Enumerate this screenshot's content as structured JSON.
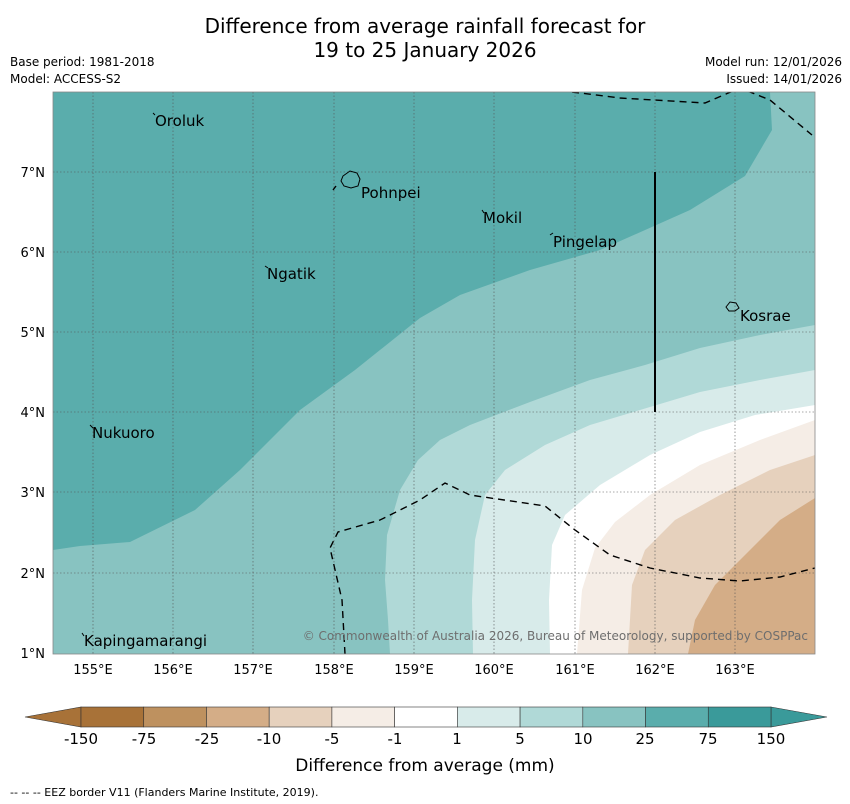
{
  "header": {
    "title_line1": "Difference from average rainfall forecast for",
    "title_line2": "19 to 25 January 2026",
    "base_period": "Base period: 1981-2018",
    "model": "Model: ACCESS-S2",
    "model_run": "Model run: 12/01/2026",
    "issued": "Issued: 14/01/2026"
  },
  "map": {
    "lat_labels": [
      "1°N",
      "2°N",
      "3°N",
      "4°N",
      "5°N",
      "6°N",
      "7°N"
    ],
    "lon_labels": [
      "155°E",
      "156°E",
      "157°E",
      "158°E",
      "159°E",
      "160°E",
      "161°E",
      "162°E",
      "163°E"
    ],
    "places": [
      "Oroluk",
      "Pohnpei",
      "Mokil",
      "Pingelap",
      "Ngatik",
      "Kosrae",
      "Nukuoro",
      "Kapingamarangi"
    ],
    "copyright": "© Commonwealth of Australia 2026, Bureau of Meteorology, supported by COSPPac"
  },
  "legend": {
    "title": "Difference from average (mm)",
    "labels": [
      "-150",
      "-75",
      "-25",
      "-10",
      "-5",
      "-1",
      "1",
      "5",
      "10",
      "25",
      "75",
      "150"
    ],
    "colors": [
      "#a87238",
      "#be915f",
      "#d4ad87",
      "#e6d1bd",
      "#f5ede6",
      "#ffffff",
      "#d8ebea",
      "#b0d9d7",
      "#88c3c1",
      "#5aadac",
      "#3a9a9a"
    ]
  },
  "footer": {
    "eez_note": "--  --  -- EEZ border V11 (Flanders Marine Institute, 2019)."
  }
}
